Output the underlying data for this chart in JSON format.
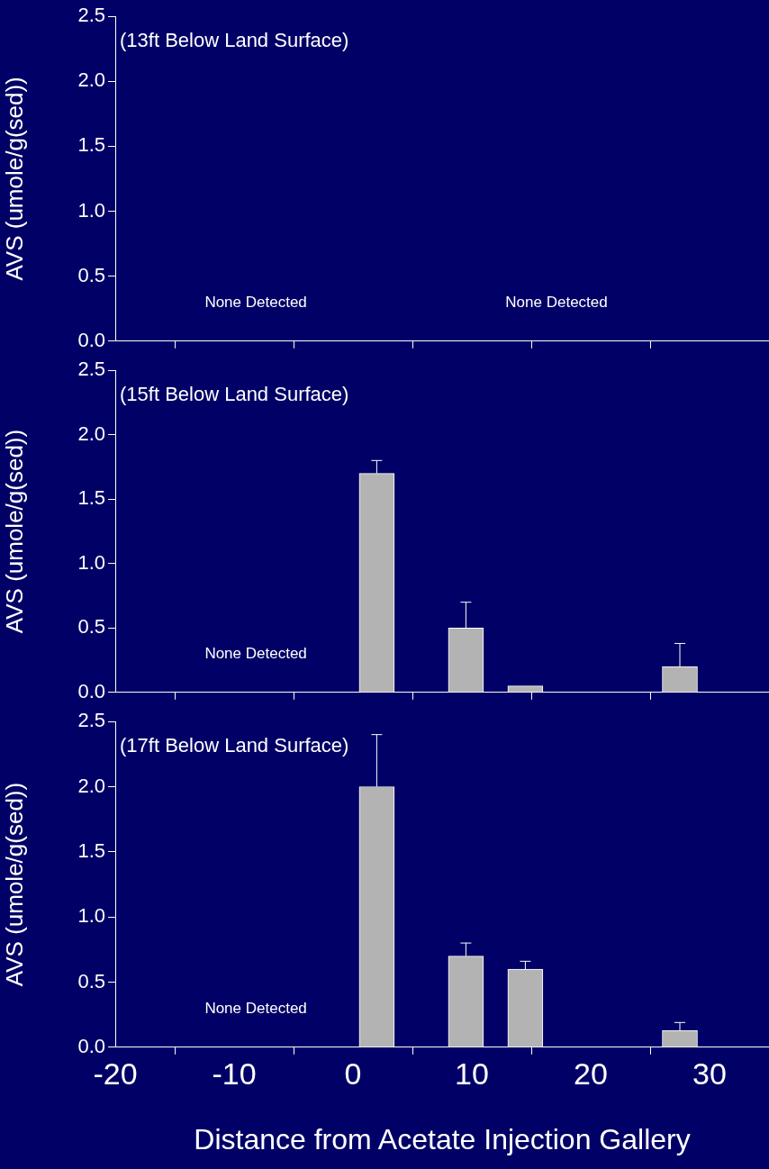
{
  "chart_data": [
    {
      "type": "bar",
      "title": "(13ft Below Land Surface)",
      "ylabel": "AVS (umole/g(sed))",
      "color": "#b3b3b3",
      "xlim": [
        -20,
        35
      ],
      "xticks": [
        -20,
        -10,
        0,
        10,
        20,
        30
      ],
      "ylim": [
        0,
        2.5
      ],
      "yticks": [
        {
          "value": 0,
          "label": "0.0"
        },
        0.5,
        {
          "value": 1,
          "label": "1.0"
        },
        1.5,
        {
          "value": 2,
          "label": "2.0"
        },
        2.5
      ],
      "tick_labels": "y",
      "legend": false,
      "grid": false,
      "annotations": [
        "None Detected",
        "None Detected"
      ]
    },
    {
      "type": "bar",
      "title": "(15ft Below Land Surface)",
      "ylabel": "AVS (umole/g(sed))",
      "x": [
        2,
        9.5,
        14.5,
        27.5
      ],
      "values": [
        1.7,
        0.5,
        0.05,
        0.2
      ],
      "errors": [
        [
          1.7,
          1.8
        ],
        [
          0.5,
          0.7
        ],
        [
          0.05,
          0.05
        ],
        [
          0.2,
          0.38
        ]
      ],
      "color": "#b3b3b3",
      "xlim": [
        -20,
        35
      ],
      "xticks": [
        -20,
        -10,
        0,
        10,
        20,
        30
      ],
      "ylim": [
        0,
        2.5
      ],
      "yticks": [
        {
          "value": 0,
          "label": "0.0"
        },
        0.5,
        {
          "value": 1,
          "label": "1.0"
        },
        1.5,
        {
          "value": 2,
          "label": "2.0"
        },
        2.5
      ],
      "tick_labels": "y",
      "legend": false,
      "grid": false,
      "annotations": [
        "None Detected"
      ]
    },
    {
      "type": "bar",
      "title": "(17ft Below Land Surface)",
      "ylabel": "AVS (umole/g(sed))",
      "xlabel": "Distance from Acetate Injection Gallery",
      "x": [
        2,
        9.5,
        14.5,
        27.5
      ],
      "values": [
        2.0,
        0.7,
        0.6,
        0.13
      ],
      "errors": [
        [
          2.0,
          2.4
        ],
        [
          0.7,
          0.8
        ],
        [
          0.6,
          0.66
        ],
        [
          0.13,
          0.19
        ]
      ],
      "color": "#b3b3b3",
      "xlim": [
        -20,
        35
      ],
      "xticks": [
        -20,
        -10,
        0,
        10,
        20,
        30
      ],
      "ylim": [
        0,
        2.5
      ],
      "yticks": [
        {
          "value": 0,
          "label": "0.0"
        },
        0.5,
        {
          "value": 1,
          "label": "1.0"
        },
        1.5,
        {
          "value": 2,
          "label": "2.0"
        },
        2.5
      ],
      "legend": false,
      "grid": false,
      "annotations": [
        "None Detected"
      ]
    }
  ]
}
